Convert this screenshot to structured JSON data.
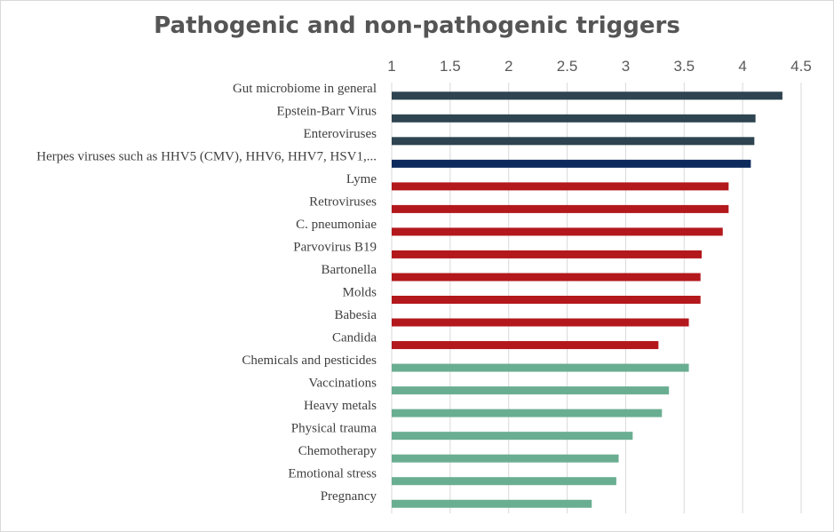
{
  "chart_data": {
    "type": "bar",
    "orientation": "horizontal",
    "title": "Pathogenic and non-pathogenic triggers",
    "xlabel": "",
    "ylabel": "",
    "xlim": [
      1,
      4.5
    ],
    "xticks": [
      "1",
      "1.5",
      "2",
      "2.5",
      "3",
      "3.5",
      "4",
      "4.5"
    ],
    "axis_position": "top",
    "grid": true,
    "categories": [
      "Gut microbiome in general",
      "Epstein-Barr Virus",
      "Enteroviruses",
      "Herpes viruses such as HHV5 (CMV), HHV6, HHV7, HSV1,...",
      "Lyme",
      "Retroviruses",
      "C. pneumoniae",
      "Parvovirus B19",
      "Bartonella",
      "Molds",
      "Babesia",
      "Candida",
      "Chemicals and pesticides",
      "Vaccinations",
      "Heavy metals",
      "Physical trauma",
      "Chemotherapy",
      "Emotional stress",
      "Pregnancy"
    ],
    "values": [
      4.34,
      4.11,
      4.1,
      4.07,
      3.88,
      3.88,
      3.83,
      3.65,
      3.64,
      3.64,
      3.54,
      3.28,
      3.54,
      3.37,
      3.31,
      3.06,
      2.94,
      2.92,
      2.71
    ],
    "bar_colors": [
      "#2e4450",
      "#2e4450",
      "#2e4450",
      "#0d2a5c",
      "#b3181c",
      "#b3181c",
      "#b3181c",
      "#b3181c",
      "#b3181c",
      "#b3181c",
      "#b3181c",
      "#b3181c",
      "#6aae92",
      "#6aae92",
      "#6aae92",
      "#6aae92",
      "#6aae92",
      "#6aae92",
      "#6aae92"
    ]
  }
}
